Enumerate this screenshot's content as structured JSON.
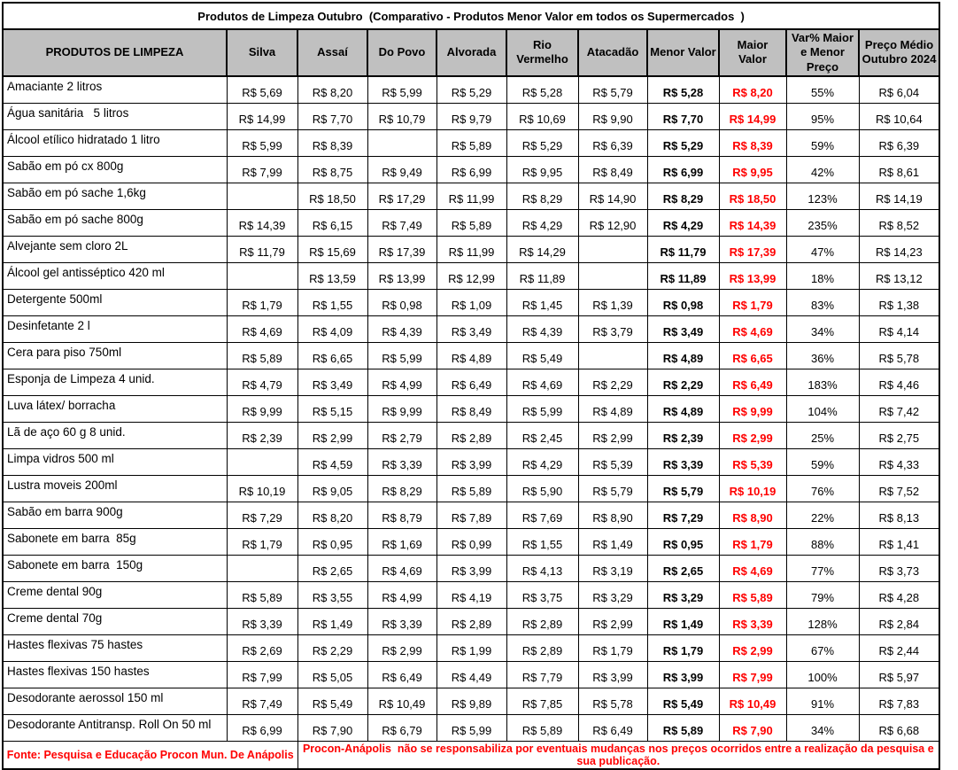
{
  "title": "Produtos de Limpeza Outubro  (Comparativo - Produtos Menor Valor em todos os Supermercados  )",
  "colors": {
    "header_bg": "#c0c0c0",
    "max_price_red": "#ff0000",
    "footer_red": "#ff0000",
    "border": "#000000"
  },
  "footer": {
    "source": "Fonte: Pesquisa e Educação Procon Mun. De Anápolis",
    "disclaimer": "Procon-Anápolis  não se responsabiliza por eventuais mudanças nos preços ocorridos entre a realização da pesquisa e sua publicação."
  },
  "table": {
    "columns": [
      {
        "key": "product",
        "label": "PRODUTOS DE LIMPEZA"
      },
      {
        "key": "silva",
        "label": "Silva"
      },
      {
        "key": "assai",
        "label": "Assaí"
      },
      {
        "key": "do_povo",
        "label": "Do Povo"
      },
      {
        "key": "alvorada",
        "label": "Alvorada"
      },
      {
        "key": "rio_vermelho",
        "label": "Rio Vermelho"
      },
      {
        "key": "atacadao",
        "label": "Atacadão"
      },
      {
        "key": "menor_valor",
        "label": "Menor Valor"
      },
      {
        "key": "maior_valor",
        "label": "Maior Valor"
      },
      {
        "key": "var_pct",
        "label": "Var% Maior e Menor Preço"
      },
      {
        "key": "preco_medio",
        "label": "Preço Médio Outubro 2024"
      }
    ],
    "rows": [
      {
        "product": "Amaciante 2 litros",
        "silva": "R$ 5,69",
        "assai": "R$ 8,20",
        "do_povo": "R$ 5,99",
        "alvorada": "R$ 5,29",
        "rio_vermelho": "R$ 5,28",
        "atacadao": "R$ 5,79",
        "menor_valor": "R$ 5,28",
        "maior_valor": "R$ 8,20",
        "var_pct": "55%",
        "preco_medio": "R$ 6,04"
      },
      {
        "product": "Água sanitária   5 litros",
        "silva": "R$ 14,99",
        "assai": "R$ 7,70",
        "do_povo": "R$ 10,79",
        "alvorada": "R$ 9,79",
        "rio_vermelho": "R$ 10,69",
        "atacadao": "R$ 9,90",
        "menor_valor": "R$ 7,70",
        "maior_valor": "R$ 14,99",
        "var_pct": "95%",
        "preco_medio": "R$ 10,64"
      },
      {
        "product": "Álcool etílico hidratado 1 litro",
        "silva": "R$ 5,99",
        "assai": "R$ 8,39",
        "do_povo": "",
        "alvorada": "R$ 5,89",
        "rio_vermelho": "R$ 5,29",
        "atacadao": "R$ 6,39",
        "menor_valor": "R$ 5,29",
        "maior_valor": "R$ 8,39",
        "var_pct": "59%",
        "preco_medio": "R$ 6,39"
      },
      {
        "product": "Sabão em pó cx 800g",
        "silva": "R$ 7,99",
        "assai": "R$ 8,75",
        "do_povo": "R$ 9,49",
        "alvorada": "R$ 6,99",
        "rio_vermelho": "R$ 9,95",
        "atacadao": "R$ 8,49",
        "menor_valor": "R$ 6,99",
        "maior_valor": "R$ 9,95",
        "var_pct": "42%",
        "preco_medio": "R$ 8,61"
      },
      {
        "product": "Sabão em pó sache 1,6kg",
        "silva": "",
        "assai": "R$ 18,50",
        "do_povo": "R$ 17,29",
        "alvorada": "R$ 11,99",
        "rio_vermelho": "R$ 8,29",
        "atacadao": "R$ 14,90",
        "menor_valor": "R$ 8,29",
        "maior_valor": "R$ 18,50",
        "var_pct": "123%",
        "preco_medio": "R$ 14,19"
      },
      {
        "product": "Sabão em pó sache 800g",
        "silva": "R$ 14,39",
        "assai": "R$ 6,15",
        "do_povo": "R$ 7,49",
        "alvorada": "R$ 5,89",
        "rio_vermelho": "R$ 4,29",
        "atacadao": "R$ 12,90",
        "menor_valor": "R$ 4,29",
        "maior_valor": "R$ 14,39",
        "var_pct": "235%",
        "preco_medio": "R$ 8,52"
      },
      {
        "product": "Alvejante sem cloro 2L",
        "silva": "R$ 11,79",
        "assai": "R$ 15,69",
        "do_povo": "R$ 17,39",
        "alvorada": "R$ 11,99",
        "rio_vermelho": "R$ 14,29",
        "atacadao": "",
        "menor_valor": "R$ 11,79",
        "maior_valor": "R$ 17,39",
        "var_pct": "47%",
        "preco_medio": "R$ 14,23"
      },
      {
        "product": "Álcool gel antisséptico 420 ml",
        "silva": "",
        "assai": "R$ 13,59",
        "do_povo": "R$ 13,99",
        "alvorada": "R$ 12,99",
        "rio_vermelho": "R$ 11,89",
        "atacadao": "",
        "menor_valor": "R$ 11,89",
        "maior_valor": "R$ 13,99",
        "var_pct": "18%",
        "preco_medio": "R$ 13,12"
      },
      {
        "product": "Detergente 500ml",
        "silva": "R$ 1,79",
        "assai": "R$ 1,55",
        "do_povo": "R$ 0,98",
        "alvorada": "R$ 1,09",
        "rio_vermelho": "R$ 1,45",
        "atacadao": "R$ 1,39",
        "menor_valor": "R$ 0,98",
        "maior_valor": "R$ 1,79",
        "var_pct": "83%",
        "preco_medio": "R$ 1,38"
      },
      {
        "product": "Desinfetante 2 l",
        "silva": "R$ 4,69",
        "assai": "R$ 4,09",
        "do_povo": "R$ 4,39",
        "alvorada": "R$ 3,49",
        "rio_vermelho": "R$ 4,39",
        "atacadao": "R$ 3,79",
        "menor_valor": "R$ 3,49",
        "maior_valor": "R$ 4,69",
        "var_pct": "34%",
        "preco_medio": "R$ 4,14"
      },
      {
        "product": "Cera para piso 750ml",
        "silva": "R$ 5,89",
        "assai": "R$ 6,65",
        "do_povo": "R$ 5,99",
        "alvorada": "R$ 4,89",
        "rio_vermelho": "R$ 5,49",
        "atacadao": "",
        "menor_valor": "R$ 4,89",
        "maior_valor": "R$ 6,65",
        "var_pct": "36%",
        "preco_medio": "R$ 5,78"
      },
      {
        "product": "Esponja de Limpeza 4 unid.",
        "silva": "R$ 4,79",
        "assai": "R$ 3,49",
        "do_povo": "R$ 4,99",
        "alvorada": "R$ 6,49",
        "rio_vermelho": "R$ 4,69",
        "atacadao": "R$ 2,29",
        "menor_valor": "R$ 2,29",
        "maior_valor": "R$ 6,49",
        "var_pct": "183%",
        "preco_medio": "R$ 4,46"
      },
      {
        "product": "Luva látex/ borracha",
        "silva": "R$ 9,99",
        "assai": "R$ 5,15",
        "do_povo": "R$ 9,99",
        "alvorada": "R$ 8,49",
        "rio_vermelho": "R$ 5,99",
        "atacadao": "R$ 4,89",
        "menor_valor": "R$ 4,89",
        "maior_valor": "R$ 9,99",
        "var_pct": "104%",
        "preco_medio": "R$ 7,42"
      },
      {
        "product": "Lã de aço 60 g 8 unid.",
        "silva": "R$ 2,39",
        "assai": "R$ 2,99",
        "do_povo": "R$ 2,79",
        "alvorada": "R$ 2,89",
        "rio_vermelho": "R$ 2,45",
        "atacadao": "R$ 2,99",
        "menor_valor": "R$ 2,39",
        "maior_valor": "R$ 2,99",
        "var_pct": "25%",
        "preco_medio": "R$ 2,75"
      },
      {
        "product": "Limpa vidros 500 ml",
        "silva": "",
        "assai": "R$ 4,59",
        "do_povo": "R$ 3,39",
        "alvorada": "R$ 3,99",
        "rio_vermelho": "R$ 4,29",
        "atacadao": "R$ 5,39",
        "menor_valor": "R$ 3,39",
        "maior_valor": "R$ 5,39",
        "var_pct": "59%",
        "preco_medio": "R$ 4,33"
      },
      {
        "product": "Lustra moveis 200ml",
        "silva": "R$ 10,19",
        "assai": "R$ 9,05",
        "do_povo": "R$ 8,29",
        "alvorada": "R$ 5,89",
        "rio_vermelho": "R$ 5,90",
        "atacadao": "R$ 5,79",
        "menor_valor": "R$ 5,79",
        "maior_valor": "R$ 10,19",
        "var_pct": "76%",
        "preco_medio": "R$ 7,52"
      },
      {
        "product": "Sabão em barra 900g",
        "silva": "R$ 7,29",
        "assai": "R$ 8,20",
        "do_povo": "R$ 8,79",
        "alvorada": "R$ 7,89",
        "rio_vermelho": "R$ 7,69",
        "atacadao": "R$ 8,90",
        "menor_valor": "R$ 7,29",
        "maior_valor": "R$ 8,90",
        "var_pct": "22%",
        "preco_medio": "R$ 8,13"
      },
      {
        "product": "Sabonete em barra  85g",
        "silva": "R$ 1,79",
        "assai": "R$ 0,95",
        "do_povo": "R$ 1,69",
        "alvorada": "R$ 0,99",
        "rio_vermelho": "R$ 1,55",
        "atacadao": "R$ 1,49",
        "menor_valor": "R$ 0,95",
        "maior_valor": "R$ 1,79",
        "var_pct": "88%",
        "preco_medio": "R$ 1,41"
      },
      {
        "product": "Sabonete em barra  150g",
        "silva": "",
        "assai": "R$ 2,65",
        "do_povo": "R$ 4,69",
        "alvorada": "R$ 3,99",
        "rio_vermelho": "R$ 4,13",
        "atacadao": "R$ 3,19",
        "menor_valor": "R$ 2,65",
        "maior_valor": "R$ 4,69",
        "var_pct": "77%",
        "preco_medio": "R$ 3,73"
      },
      {
        "product": "Creme dental 90g",
        "silva": "R$ 5,89",
        "assai": "R$ 3,55",
        "do_povo": "R$ 4,99",
        "alvorada": "R$ 4,19",
        "rio_vermelho": "R$ 3,75",
        "atacadao": "R$ 3,29",
        "menor_valor": "R$ 3,29",
        "maior_valor": "R$ 5,89",
        "var_pct": "79%",
        "preco_medio": "R$ 4,28"
      },
      {
        "product": "Creme dental 70g",
        "silva": "R$ 3,39",
        "assai": "R$ 1,49",
        "do_povo": "R$ 3,39",
        "alvorada": "R$ 2,89",
        "rio_vermelho": "R$ 2,89",
        "atacadao": "R$ 2,99",
        "menor_valor": "R$ 1,49",
        "maior_valor": "R$ 3,39",
        "var_pct": "128%",
        "preco_medio": "R$ 2,84"
      },
      {
        "product": "Hastes flexivas 75 hastes",
        "silva": "R$ 2,69",
        "assai": "R$ 2,29",
        "do_povo": "R$ 2,99",
        "alvorada": "R$ 1,99",
        "rio_vermelho": "R$ 2,89",
        "atacadao": "R$ 1,79",
        "menor_valor": "R$ 1,79",
        "maior_valor": "R$ 2,99",
        "var_pct": "67%",
        "preco_medio": "R$ 2,44"
      },
      {
        "product": "Hastes flexivas 150 hastes",
        "silva": "R$ 7,99",
        "assai": "R$ 5,05",
        "do_povo": "R$ 6,49",
        "alvorada": "R$ 4,49",
        "rio_vermelho": "R$ 7,79",
        "atacadao": "R$ 3,99",
        "menor_valor": "R$ 3,99",
        "maior_valor": "R$ 7,99",
        "var_pct": "100%",
        "preco_medio": "R$ 5,97"
      },
      {
        "product": "Desodorante aerossol 150 ml",
        "silva": "R$ 7,49",
        "assai": "R$ 5,49",
        "do_povo": "R$ 10,49",
        "alvorada": "R$ 9,89",
        "rio_vermelho": "R$ 7,85",
        "atacadao": "R$ 5,78",
        "menor_valor": "R$ 5,49",
        "maior_valor": "R$ 10,49",
        "var_pct": "91%",
        "preco_medio": "R$ 7,83"
      },
      {
        "product": "Desodorante Antitransp. Roll On 50 ml",
        "silva": "R$ 6,99",
        "assai": "R$ 7,90",
        "do_povo": "R$ 6,79",
        "alvorada": "R$ 5,99",
        "rio_vermelho": "R$ 5,89",
        "atacadao": "R$ 6,49",
        "menor_valor": "R$ 5,89",
        "maior_valor": "R$ 7,90",
        "var_pct": "34%",
        "preco_medio": "R$ 6,68"
      }
    ]
  }
}
